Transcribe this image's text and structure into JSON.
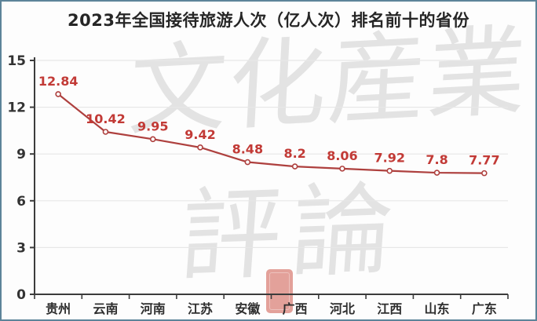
{
  "title": "2023年全国接待旅游人次（亿人次）排名前十的省份",
  "watermark": {
    "line1": "文化産業",
    "line2": "評論"
  },
  "colors": {
    "frame_border": "#5d8499",
    "line": "#ae403e",
    "marker_fill": "#ffffff",
    "data_label": "#c23a36",
    "axis": "#3c3c3c",
    "axis_label": "#333333",
    "grid": "#e7e7e7",
    "watermark_text": "#e3e3e3",
    "title_text": "#262626"
  },
  "chart_data": {
    "type": "line",
    "title": "2023年全国接待旅游人次（亿人次）排名前十的省份",
    "categories": [
      "贵州",
      "云南",
      "河南",
      "江苏",
      "安徽",
      "广西",
      "河北",
      "江西",
      "山东",
      "广东"
    ],
    "values": [
      12.84,
      10.42,
      9.95,
      9.42,
      8.48,
      8.2,
      8.06,
      7.92,
      7.8,
      7.77
    ],
    "xlabel": "",
    "ylabel": "",
    "ylim": [
      0,
      15
    ],
    "yticks": [
      0,
      3,
      6,
      9,
      12,
      15
    ],
    "grid": true,
    "legend": "none",
    "marker": "open-circle",
    "data_labels_shown": true
  }
}
